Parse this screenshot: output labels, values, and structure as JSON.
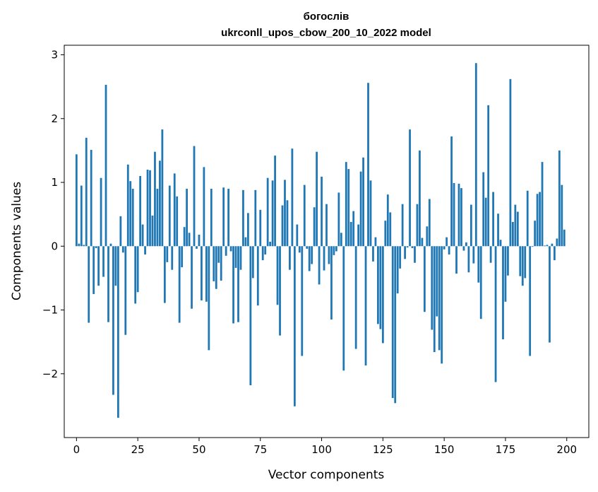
{
  "chart_data": {
    "type": "bar",
    "title": "богослів",
    "subtitle": "ukrconll_upos_cbow_200_10_2022 model",
    "xlabel": "Vector components",
    "ylabel": "Components values",
    "xlim": [
      -5,
      209
    ],
    "ylim": [
      -3.0,
      3.15
    ],
    "xticks": [
      0,
      25,
      50,
      75,
      100,
      125,
      150,
      175,
      200
    ],
    "yticks": [
      -2,
      -1,
      0,
      1,
      2,
      3
    ],
    "ytick_labels": [
      "−2",
      "−1",
      "0",
      "1",
      "2",
      "3"
    ],
    "grid": false,
    "bar_color": "#1f77b4",
    "x": [
      0,
      1,
      2,
      3,
      4,
      5,
      6,
      7,
      8,
      9,
      10,
      11,
      12,
      13,
      14,
      15,
      16,
      17,
      18,
      19,
      20,
      21,
      22,
      23,
      24,
      25,
      26,
      27,
      28,
      29,
      30,
      31,
      32,
      33,
      34,
      35,
      36,
      37,
      38,
      39,
      40,
      41,
      42,
      43,
      44,
      45,
      46,
      47,
      48,
      49,
      50,
      51,
      52,
      53,
      54,
      55,
      56,
      57,
      58,
      59,
      60,
      61,
      62,
      63,
      64,
      65,
      66,
      67,
      68,
      69,
      70,
      71,
      72,
      73,
      74,
      75,
      76,
      77,
      78,
      79,
      80,
      81,
      82,
      83,
      84,
      85,
      86,
      87,
      88,
      89,
      90,
      91,
      92,
      93,
      94,
      95,
      96,
      97,
      98,
      99,
      100,
      101,
      102,
      103,
      104,
      105,
      106,
      107,
      108,
      109,
      110,
      111,
      112,
      113,
      114,
      115,
      116,
      117,
      118,
      119,
      120,
      121,
      122,
      123,
      124,
      125,
      126,
      127,
      128,
      129,
      130,
      131,
      132,
      133,
      134,
      135,
      136,
      137,
      138,
      139,
      140,
      141,
      142,
      143,
      144,
      145,
      146,
      147,
      148,
      149,
      150,
      151,
      152,
      153,
      154,
      155,
      156,
      157,
      158,
      159,
      160,
      161,
      162,
      163,
      164,
      165,
      166,
      167,
      168,
      169,
      170,
      171,
      172,
      173,
      174,
      175,
      176,
      177,
      178,
      179,
      180,
      181,
      182,
      183,
      184,
      185,
      186,
      187,
      188,
      189,
      190,
      191,
      192,
      193,
      194,
      195,
      196,
      197,
      198,
      199
    ],
    "values": [
      1.44,
      0.04,
      0.95,
      0.02,
      1.7,
      -1.2,
      1.51,
      -0.75,
      -0.03,
      -0.62,
      1.07,
      -0.48,
      2.53,
      -1.19,
      0.04,
      -2.33,
      -0.62,
      -2.69,
      0.47,
      -0.1,
      -1.39,
      1.28,
      1.02,
      0.9,
      -0.9,
      -0.72,
      1.1,
      0.34,
      -0.13,
      1.2,
      1.19,
      0.48,
      1.48,
      0.9,
      1.34,
      1.83,
      -0.89,
      -0.25,
      0.95,
      -0.37,
      1.14,
      0.78,
      -1.2,
      -0.33,
      0.3,
      0.9,
      0.21,
      -0.98,
      1.57,
      -0.04,
      0.18,
      -0.85,
      1.24,
      -0.87,
      -1.63,
      0.9,
      -0.55,
      -0.67,
      -0.26,
      -0.54,
      0.92,
      -0.15,
      0.9,
      -0.08,
      -1.21,
      -0.34,
      -1.19,
      -0.37,
      0.88,
      0.14,
      0.52,
      -2.18,
      -0.5,
      0.88,
      -0.93,
      0.57,
      -0.22,
      -0.13,
      1.07,
      0.07,
      1.03,
      1.42,
      -0.92,
      -1.4,
      0.64,
      1.04,
      0.72,
      -0.37,
      1.53,
      -2.51,
      0.34,
      -0.1,
      -1.72,
      0.96,
      -0.04,
      -0.39,
      -0.28,
      0.61,
      1.48,
      -0.6,
      1.09,
      -0.38,
      0.66,
      -0.28,
      -1.15,
      -0.14,
      -0.08,
      0.84,
      0.21,
      -1.95,
      1.32,
      1.21,
      0.38,
      0.55,
      -1.61,
      0.34,
      1.17,
      1.39,
      -1.87,
      2.56,
      1.03,
      -0.24,
      0.14,
      -1.22,
      -1.3,
      -1.52,
      0.4,
      0.81,
      0.53,
      -2.38,
      -2.46,
      -0.74,
      -0.35,
      0.66,
      -0.2,
      -0.02,
      1.83,
      -0.03,
      -0.26,
      0.66,
      1.5,
      0.13,
      -1.03,
      0.31,
      0.74,
      -1.31,
      -1.66,
      -1.1,
      -1.63,
      -1.84,
      -0.05,
      0.14,
      -0.13,
      1.72,
      0.99,
      -0.43,
      0.98,
      0.91,
      -0.07,
      0.06,
      -0.41,
      0.65,
      -0.27,
      2.87,
      -0.57,
      -1.14,
      1.16,
      0.76,
      2.21,
      -0.26,
      0.85,
      -2.13,
      0.51,
      0.1,
      -1.46,
      -0.87,
      -0.46,
      2.62,
      0.38,
      0.65,
      0.54,
      -0.47,
      -0.62,
      -0.5,
      0.87,
      -1.72,
      -0.01,
      0.4,
      0.82,
      0.85,
      1.32,
      0.01,
      0.02,
      -1.51,
      0.04,
      -0.22,
      0.12,
      1.5,
      0.96,
      0.26
    ]
  }
}
